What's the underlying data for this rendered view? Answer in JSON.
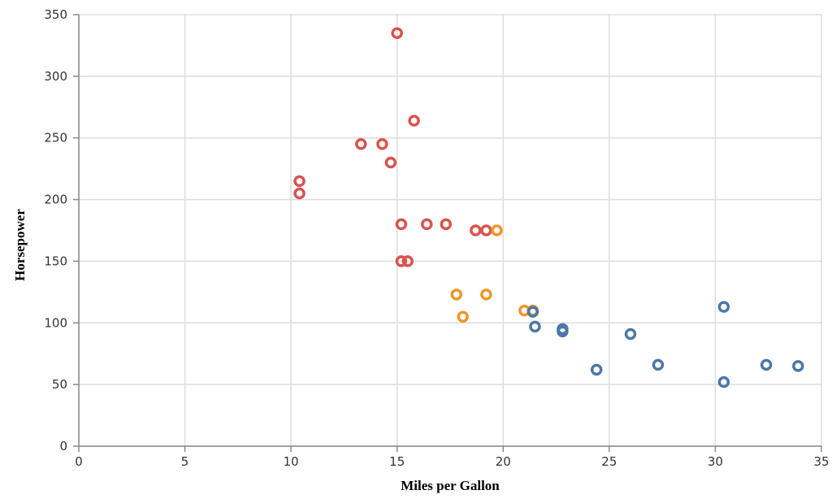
{
  "chart_data": {
    "type": "scatter",
    "title": "",
    "xlabel": "Miles per Gallon",
    "ylabel": "Horsepower",
    "xlim": [
      0,
      35
    ],
    "ylim": [
      0,
      350
    ],
    "xticks": [
      0,
      5,
      10,
      15,
      20,
      25,
      30,
      35
    ],
    "yticks": [
      0,
      50,
      100,
      150,
      200,
      250,
      300,
      350
    ],
    "grid": true,
    "legend": "none",
    "series": [
      {
        "color": "#d9534f",
        "points": [
          {
            "x": 15.0,
            "y": 335
          },
          {
            "x": 15.8,
            "y": 264
          },
          {
            "x": 13.3,
            "y": 245
          },
          {
            "x": 14.3,
            "y": 245
          },
          {
            "x": 14.7,
            "y": 230
          },
          {
            "x": 10.4,
            "y": 215
          },
          {
            "x": 10.4,
            "y": 205
          },
          {
            "x": 15.2,
            "y": 180
          },
          {
            "x": 16.4,
            "y": 180
          },
          {
            "x": 17.3,
            "y": 180
          },
          {
            "x": 18.7,
            "y": 175
          },
          {
            "x": 19.2,
            "y": 175
          },
          {
            "x": 15.2,
            "y": 150
          },
          {
            "x": 15.5,
            "y": 150
          }
        ]
      },
      {
        "color": "#f0962a",
        "points": [
          {
            "x": 19.7,
            "y": 175
          },
          {
            "x": 17.8,
            "y": 123
          },
          {
            "x": 19.2,
            "y": 123
          },
          {
            "x": 18.1,
            "y": 105
          },
          {
            "x": 21.0,
            "y": 110
          },
          {
            "x": 21.4,
            "y": 110
          }
        ]
      },
      {
        "color": "#4c78a8",
        "points": [
          {
            "x": 21.4,
            "y": 109
          },
          {
            "x": 21.5,
            "y": 97
          },
          {
            "x": 22.8,
            "y": 95
          },
          {
            "x": 22.8,
            "y": 93
          },
          {
            "x": 24.4,
            "y": 62
          },
          {
            "x": 26.0,
            "y": 91
          },
          {
            "x": 27.3,
            "y": 66
          },
          {
            "x": 30.4,
            "y": 113
          },
          {
            "x": 30.4,
            "y": 52
          },
          {
            "x": 32.4,
            "y": 66
          },
          {
            "x": 33.9,
            "y": 65
          }
        ]
      }
    ]
  }
}
